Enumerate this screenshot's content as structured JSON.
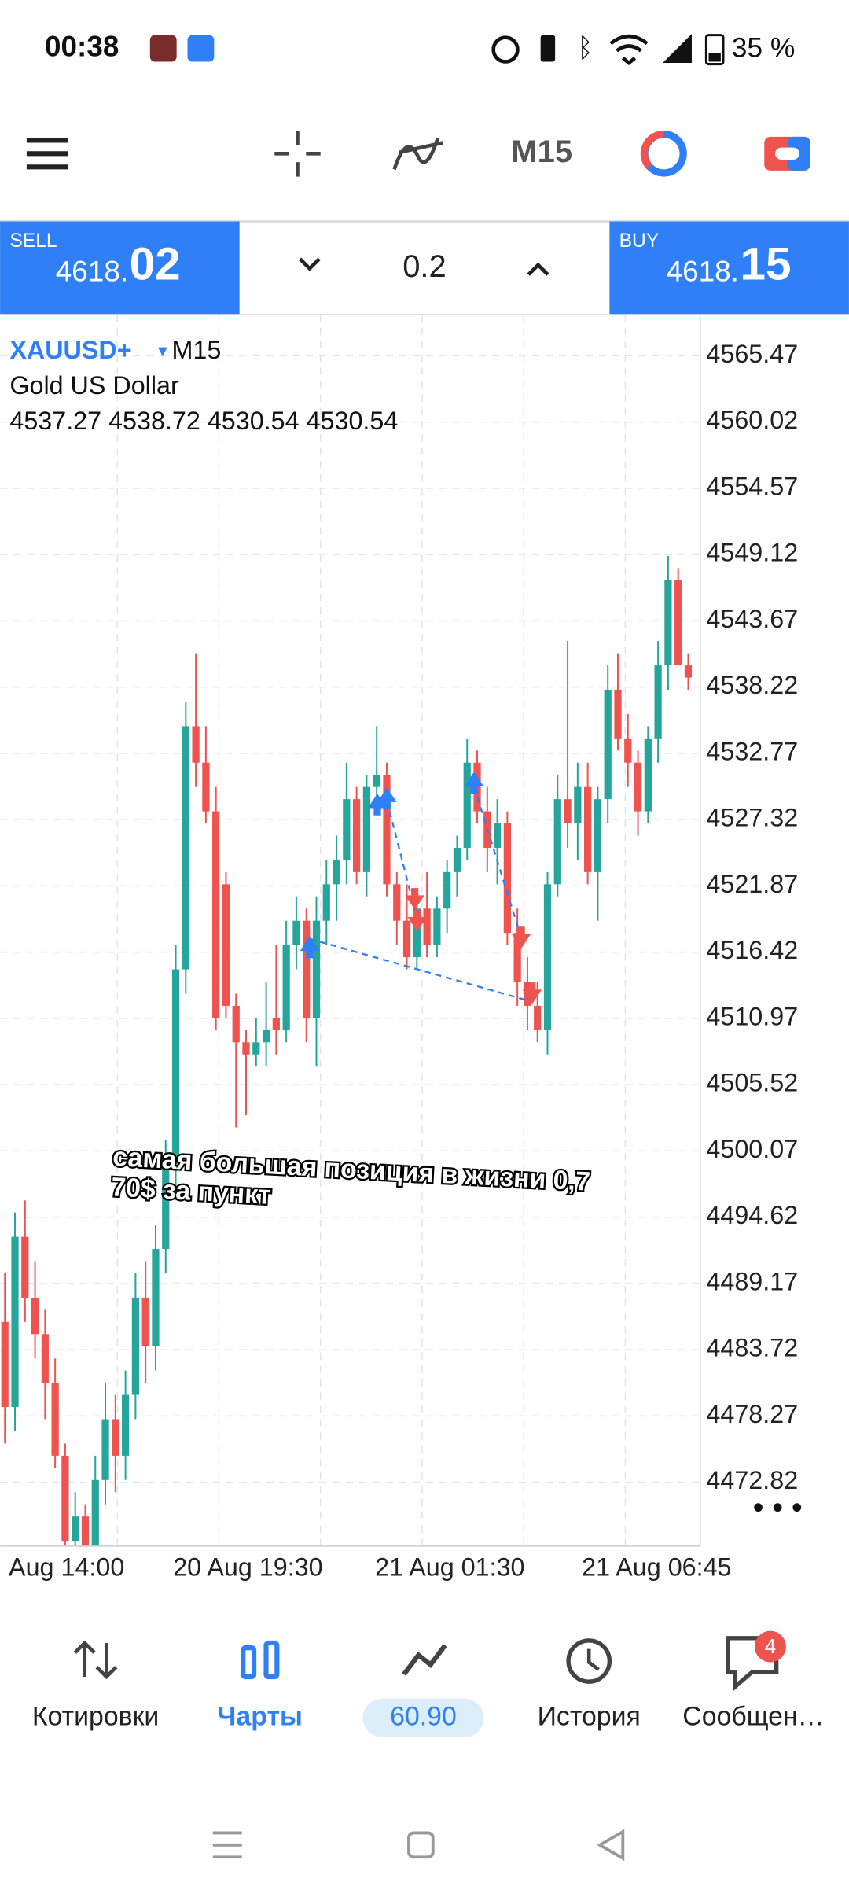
{
  "status_bar": {
    "time": "00:38",
    "battery": "35 %"
  },
  "toolbar": {
    "timeframe": "M15"
  },
  "trade_panel": {
    "sell_label": "SELL",
    "sell_price_main": "4618.",
    "sell_price_big": "02",
    "volume": "0.2",
    "buy_label": "BUY",
    "buy_price_main": "4618.",
    "buy_price_big": "15"
  },
  "chart_data": {
    "type": "candlestick",
    "symbol": "XAUUSD+",
    "timeframe": "M15",
    "description": "Gold US Dollar",
    "ohlc": [
      4537.27,
      4538.72,
      4530.54,
      4530.54
    ],
    "annotation": [
      "самая большая позиция в жизни 0,7",
      "70$ за пункт"
    ],
    "xtick_labels": [
      "Aug 14:00",
      "20 Aug 19:30",
      "21 Aug 01:30",
      "21 Aug 06:45"
    ],
    "up_color": "#26a69a",
    "down_color": "#ef5350",
    "ylim": [
      4467.56,
      4568.86
    ],
    "yticks": [
      4565.47,
      4560.02,
      4554.57,
      4549.12,
      4543.67,
      4538.22,
      4532.77,
      4527.32,
      4521.87,
      4516.42,
      4510.97,
      4505.52,
      4500.07,
      4494.62,
      4489.17,
      4483.72,
      4478.27,
      4472.82
    ],
    "grid": true,
    "open": [
      4486,
      4479,
      4493,
      4488,
      4485,
      4481,
      4475,
      4468,
      4470,
      4466,
      4473,
      4478,
      4475,
      4480,
      4488,
      4484,
      4492,
      4499,
      4515,
      4535,
      4532,
      4528,
      4522,
      4512,
      4509,
      4508,
      4509,
      4511,
      4510,
      4517,
      4519,
      4511,
      4519,
      4522,
      4524,
      4529,
      4523,
      4530,
      4531,
      4522,
      4519,
      4516,
      4520,
      4517,
      4520,
      4523,
      4525,
      4532,
      4528,
      4525,
      4527,
      4518,
      4514,
      4512,
      4510,
      4522,
      4529,
      4527,
      4530,
      4523,
      4529,
      4538,
      4534,
      4532,
      4528,
      4534,
      4540,
      4547,
      4540
    ],
    "high": [
      4490,
      4495,
      4496,
      4491,
      4487,
      4483,
      4476,
      4472,
      4471,
      4475,
      4481,
      4480,
      4482,
      4490,
      4491,
      4494,
      4501,
      4517,
      4537,
      4541,
      4535,
      4530,
      4523,
      4513,
      4510,
      4511,
      4514,
      4517,
      4519,
      4521,
      4520,
      4521,
      4524,
      4526,
      4532,
      4530,
      4531,
      4535,
      4532,
      4523,
      4522,
      4521,
      4523,
      4521,
      4524,
      4526,
      4534,
      4533,
      4530,
      4529,
      4528,
      4520,
      4516,
      4514,
      4523,
      4531,
      4542,
      4532,
      4532,
      4530,
      4540,
      4541,
      4536,
      4533,
      4535,
      4542,
      4549,
      4548,
      4541
    ],
    "low": [
      4476,
      4477,
      4486,
      4483,
      4478,
      4474,
      4466,
      4466,
      4465,
      4465,
      4471,
      4472,
      4473,
      4478,
      4481,
      4482,
      4490,
      4496,
      4513,
      4530,
      4527,
      4510,
      4511,
      4502,
      4503,
      4507,
      4507,
      4508,
      4509,
      4515,
      4509,
      4507,
      4517,
      4519,
      4522,
      4522,
      4521,
      4528,
      4521,
      4517,
      4515,
      4515,
      4516,
      4516,
      4518,
      4521,
      4524,
      4527,
      4523,
      4522,
      4517,
      4512,
      4510,
      4509,
      4508,
      4521,
      4525,
      4524,
      4522,
      4519,
      4527,
      4533,
      4530,
      4526,
      4527,
      4532,
      4538,
      4540,
      4538
    ],
    "close": [
      4479,
      4493,
      4488,
      4485,
      4481,
      4475,
      4468,
      4470,
      4466,
      4473,
      4478,
      4475,
      4480,
      4488,
      4484,
      4492,
      4499,
      4515,
      4535,
      4532,
      4528,
      4511,
      4512,
      4509,
      4508,
      4509,
      4510,
      4510,
      4517,
      4519,
      4511,
      4519,
      4522,
      4524,
      4529,
      4523,
      4530,
      4531,
      4522,
      4519,
      4516,
      4520,
      4517,
      4520,
      4523,
      4525,
      4532,
      4528,
      4525,
      4527,
      4518,
      4514,
      4512,
      4510,
      4522,
      4529,
      4527,
      4530,
      4523,
      4529,
      4538,
      4534,
      4532,
      4528,
      4534,
      4540,
      4547,
      4540,
      4539
    ]
  },
  "bottom_nav": {
    "quotes": "Котировки",
    "charts": "Чарты",
    "balance": "60.90",
    "history": "История",
    "messages": "Сообщен…",
    "messages_badge": "4"
  }
}
